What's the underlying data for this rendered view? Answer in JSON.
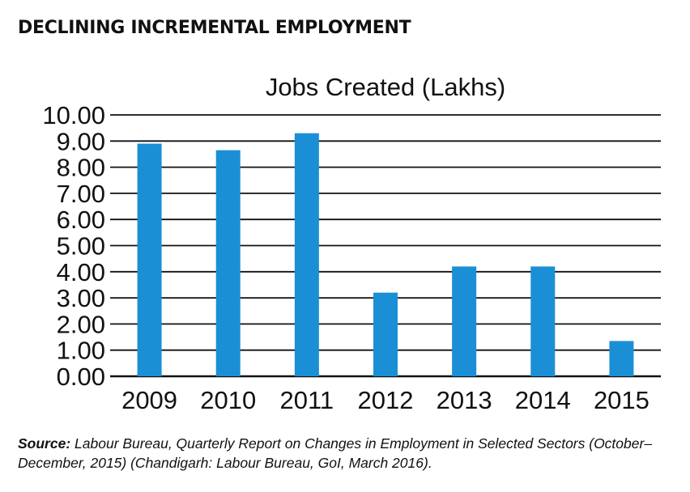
{
  "heading": "DECLINING INCREMENTAL EMPLOYMENT",
  "chart_data": {
    "type": "bar",
    "title": "Jobs Created (Lakhs)",
    "categories": [
      "2009",
      "2010",
      "2011",
      "2012",
      "2013",
      "2014",
      "2015"
    ],
    "values": [
      8.9,
      8.65,
      9.3,
      3.2,
      4.2,
      4.2,
      1.35
    ],
    "ylim": [
      0,
      10
    ],
    "yticks": [
      "0.00",
      "1.00",
      "2.00",
      "3.00",
      "4.00",
      "5.00",
      "6.00",
      "7.00",
      "8.00",
      "9.00",
      "10.00"
    ],
    "grid": true,
    "bar_color": "#1b8fd5"
  },
  "source": {
    "label": "Source:",
    "text": "Labour Bureau, Quarterly Report on Changes in Employment in Selected Sectors (October–December, 2015) (Chandigarh: Labour Bureau, GoI, March 2016)."
  }
}
